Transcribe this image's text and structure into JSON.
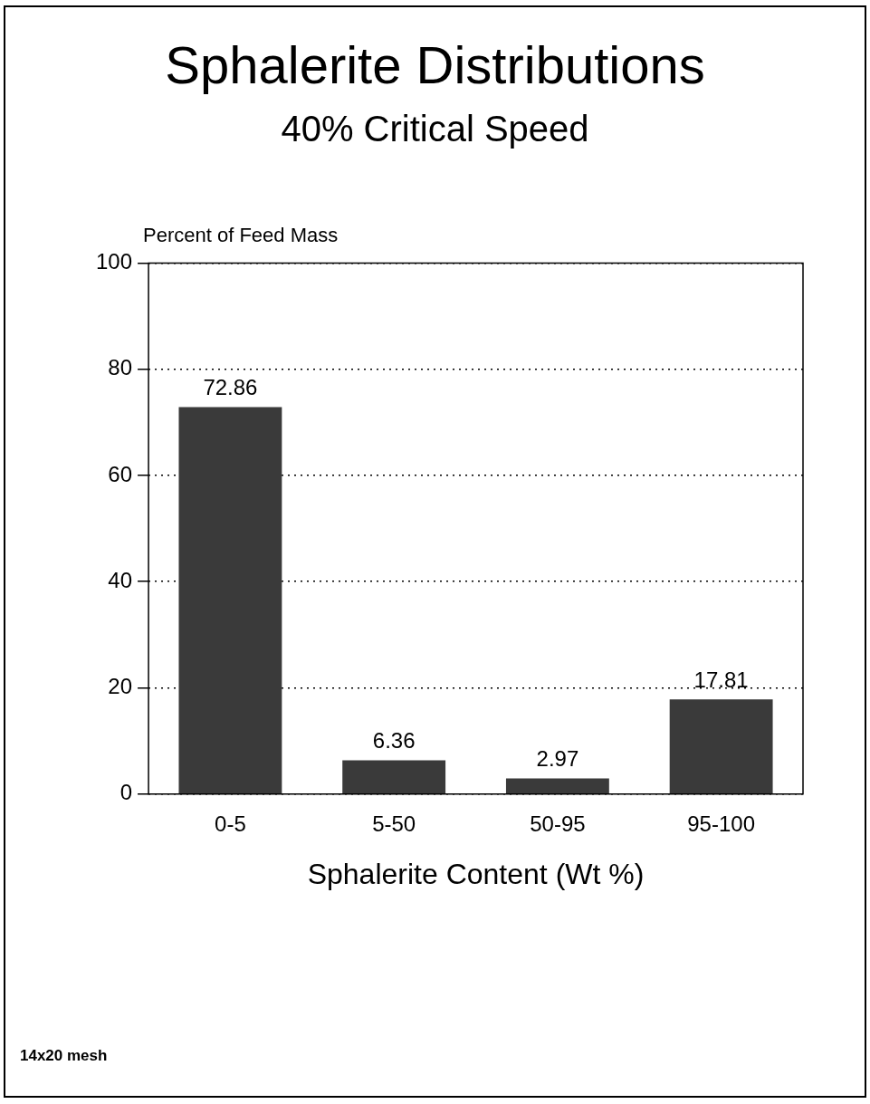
{
  "chart_data": {
    "type": "bar",
    "title": "Sphalerite Distributions",
    "subtitle": "40% Critical Speed",
    "ylabel": "Percent of Feed Mass",
    "xlabel": "Sphalerite Content (Wt %)",
    "categories": [
      "0-5",
      "5-50",
      "50-95",
      "95-100"
    ],
    "values": [
      72.86,
      6.36,
      2.97,
      17.81
    ],
    "color": "#3a3a3a",
    "ylim": [
      0,
      100
    ],
    "yticks": [
      0,
      20,
      40,
      60,
      80,
      100
    ],
    "grid": "y",
    "data_labels": true,
    "annotations": [
      "14x20 mesh"
    ]
  }
}
